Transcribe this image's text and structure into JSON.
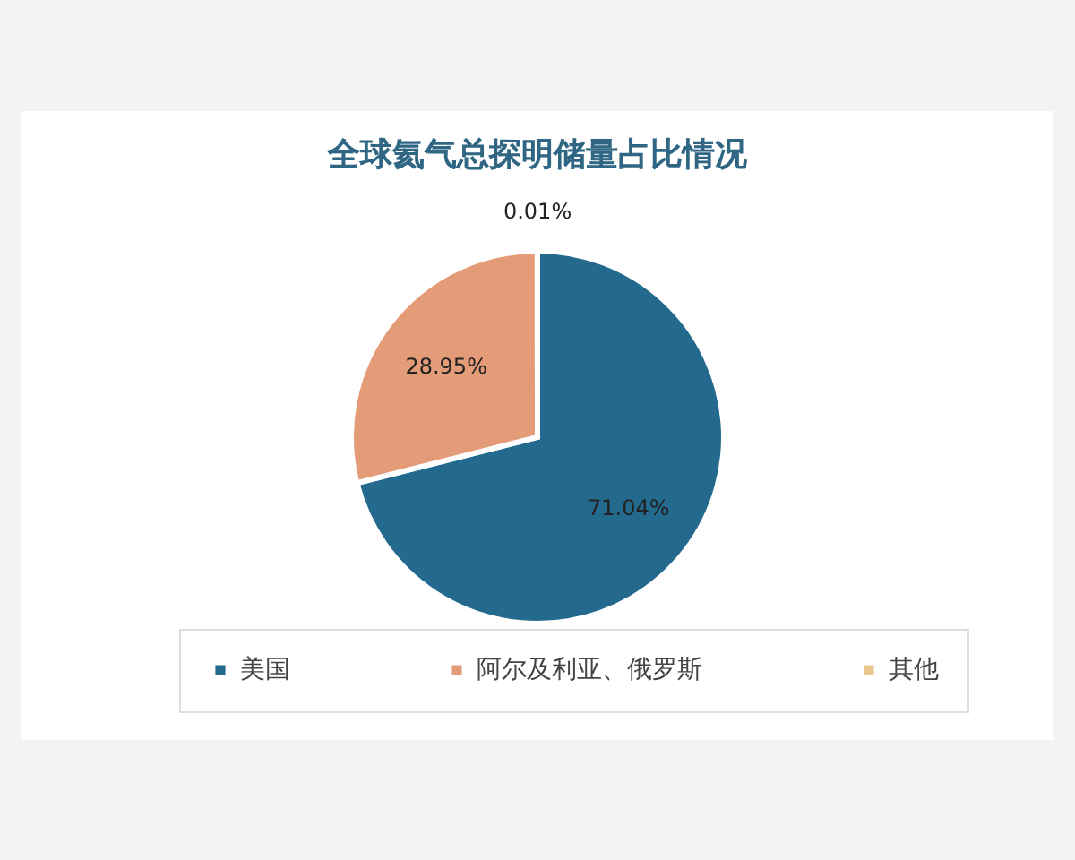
{
  "chart_data": {
    "type": "pie",
    "title": "全球氦气总探明储量占比情况",
    "categories": [
      "美国",
      "阿尔及利亚、俄罗斯",
      "其他"
    ],
    "values": [
      71.04,
      28.95,
      0.01
    ],
    "colors": [
      "#236a8e",
      "#e49b78",
      "#eac58e"
    ],
    "value_labels": [
      "71.04%",
      "28.95%",
      "0.01%"
    ],
    "legend": "bottom"
  }
}
